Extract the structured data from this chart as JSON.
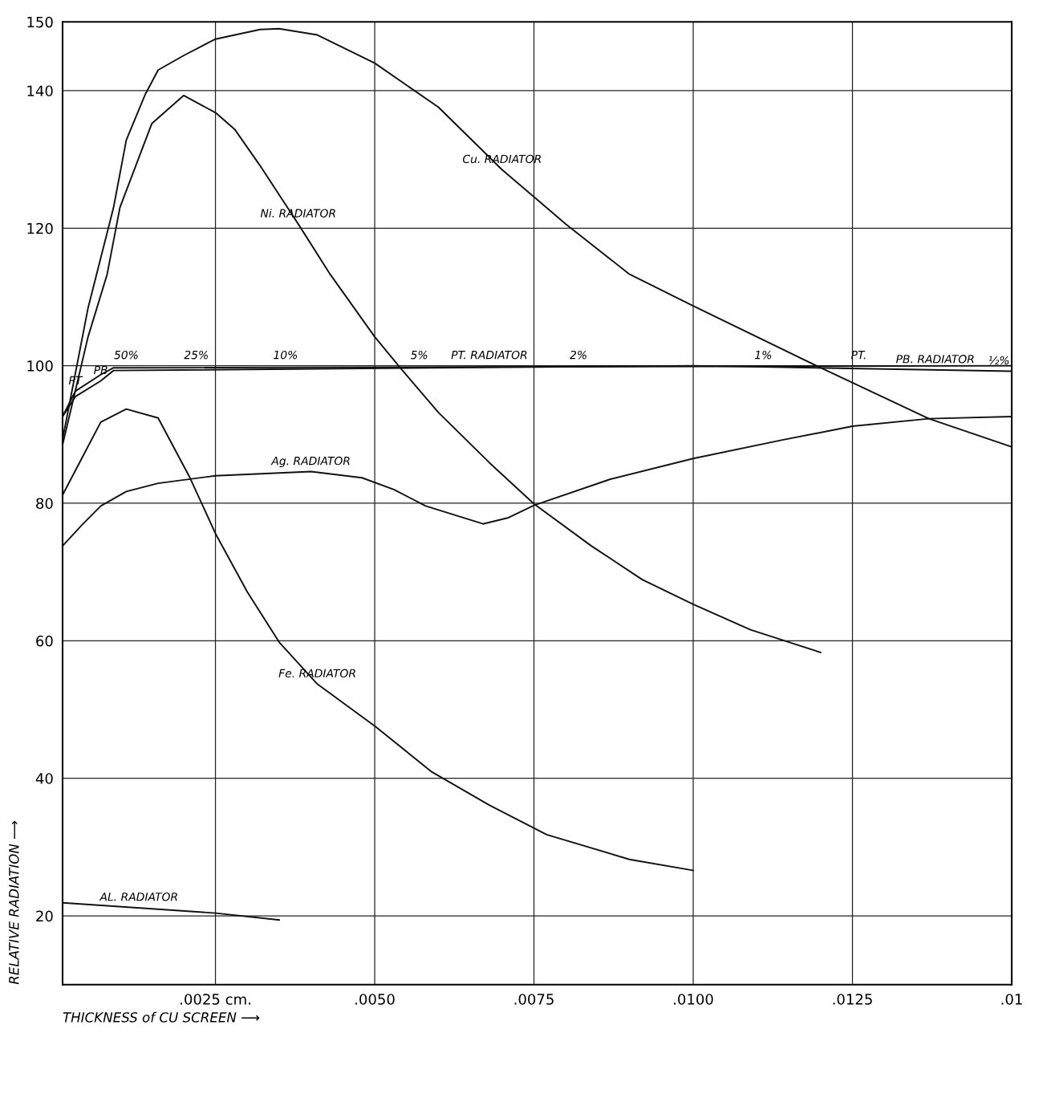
{
  "chart_data": {
    "type": "line",
    "xlabel": "THICKNESS of CU SCREEN ⟶",
    "ylabel": "RELATIVE RADIATION ⟶",
    "xlim": [
      0.0001,
      0.015
    ],
    "ylim": [
      10,
      150
    ],
    "xticks": [
      {
        "value": 0.0025,
        "label": ".0025 cm."
      },
      {
        "value": 0.005,
        "label": ".0050"
      },
      {
        "value": 0.0075,
        "label": ".0075"
      },
      {
        "value": 0.01,
        "label": ".0100"
      },
      {
        "value": 0.0125,
        "label": ".0125"
      },
      {
        "value": 0.015,
        "label": ".01"
      }
    ],
    "yticks": [
      20,
      40,
      60,
      80,
      100,
      120,
      140,
      150
    ],
    "grid": true,
    "marker": "none",
    "line_style": "solid",
    "series": [
      {
        "color": "#111111",
        "x": [
          0.0001,
          0.0005,
          0.0009,
          0.0011,
          0.0014,
          0.0016,
          0.002,
          0.0025,
          0.0032,
          0.0035,
          0.0041,
          0.005,
          0.006,
          0.007,
          0.008,
          0.009,
          0.01,
          0.012,
          0.0137,
          0.015
        ],
        "values": [
          89.3,
          108.4,
          123,
          132.8,
          139.5,
          143,
          145.1,
          147.5,
          148.9,
          149,
          148.1,
          144,
          137.6,
          128.5,
          120.6,
          113.3,
          108.7,
          99.7,
          92.3,
          88.2
        ]
      },
      {
        "color": "#111111",
        "x": [
          0.0001,
          0.0005,
          0.0008,
          0.001,
          0.0015,
          0.002,
          0.0025,
          0.0028,
          0.0032,
          0.0038,
          0.0043,
          0.005,
          0.0054,
          0.006,
          0.0068,
          0.0075,
          0.0084,
          0.0092,
          0.01,
          0.0109,
          0.012
        ],
        "values": [
          88.5,
          104.2,
          113.3,
          123,
          135.2,
          139.3,
          136.8,
          134.4,
          129.1,
          120.6,
          113.3,
          104.2,
          99.7,
          93.2,
          85.9,
          79.9,
          73.8,
          68.9,
          65.3,
          61.6,
          58.3
        ]
      },
      {
        "color": "#111111",
        "x": [
          0.0001,
          0.0004,
          0.0007,
          0.0011,
          0.0016,
          0.0021,
          0.0025,
          0.003,
          0.0035,
          0.0041,
          0.005,
          0.0059,
          0.0068,
          0.0077,
          0.009,
          0.01
        ],
        "values": [
          81.2,
          86.5,
          91.8,
          93.7,
          92.4,
          83.7,
          75.6,
          67.1,
          59.8,
          53.7,
          47.6,
          40.9,
          36.1,
          31.8,
          28.2,
          26.6
        ]
      },
      {
        "color": "#111111",
        "x": [
          0.0001,
          0.0004,
          0.0007,
          0.0011,
          0.0016,
          0.0025,
          0.004,
          0.0048,
          0.0053,
          0.0058,
          0.0067,
          0.0071,
          0.0075,
          0.0087,
          0.01,
          0.0114,
          0.0125,
          0.0137,
          0.015
        ],
        "values": [
          73.8,
          76.8,
          79.6,
          81.7,
          82.9,
          84,
          84.6,
          83.7,
          82,
          79.6,
          77,
          77.9,
          79.7,
          83.5,
          86.5,
          89.2,
          91.2,
          92.3,
          92.6
        ]
      },
      {
        "color": "#111111",
        "x": [
          0.0001,
          0.0025,
          0.0035
        ],
        "values": [
          21.9,
          20.4,
          19.4
        ]
      },
      {
        "color": "#111111",
        "x": [
          0.0001,
          0.0003,
          0.0007,
          0.0009,
          0.015
        ],
        "values": [
          92.6,
          96.3,
          98.7,
          99.7,
          100
        ]
      },
      {
        "color": "#111111",
        "x": [
          0.0001,
          0.0003,
          0.0007,
          0.0009,
          0.01,
          0.015
        ],
        "values": [
          92.6,
          95.5,
          97.8,
          99.3,
          100,
          99.2
        ]
      }
    ],
    "annotations": [
      {
        "text": "Cu. RADIATOR",
        "x": 0.007,
        "y": 128.5
      },
      {
        "text": "Ni. RADIATOR",
        "x": 0.0038,
        "y": 120.6
      },
      {
        "text": "Fe. RADIATOR",
        "x": 0.0041,
        "y": 53.7
      },
      {
        "text": "Ag. RADIATOR",
        "x": 0.004,
        "y": 84.6
      },
      {
        "text": "AL. RADIATOR",
        "x": 0.0013,
        "y": 21.2
      },
      {
        "text": "PT. RADIATOR",
        "x": 0.0068,
        "y": 100
      },
      {
        "text": "PT",
        "x": 0.0003,
        "y": 96.3
      },
      {
        "text": "PB",
        "x": 0.0007,
        "y": 97.8
      },
      {
        "text": "PT.",
        "x": 0.0126,
        "y": 100
      },
      {
        "text": "PB. RADIATOR",
        "x": 0.0138,
        "y": 99.4
      },
      {
        "text": "50%",
        "x": 0.0011,
        "y": 100
      },
      {
        "text": "25%",
        "x": 0.0022,
        "y": 100
      },
      {
        "text": "10%",
        "x": 0.0036,
        "y": 100
      },
      {
        "text": "5%",
        "x": 0.0057,
        "y": 100
      },
      {
        "text": "2%",
        "x": 0.0082,
        "y": 100
      },
      {
        "text": "1%",
        "x": 0.0111,
        "y": 100
      },
      {
        "text": "½%",
        "x": 0.0148,
        "y": 99.2
      }
    ]
  }
}
